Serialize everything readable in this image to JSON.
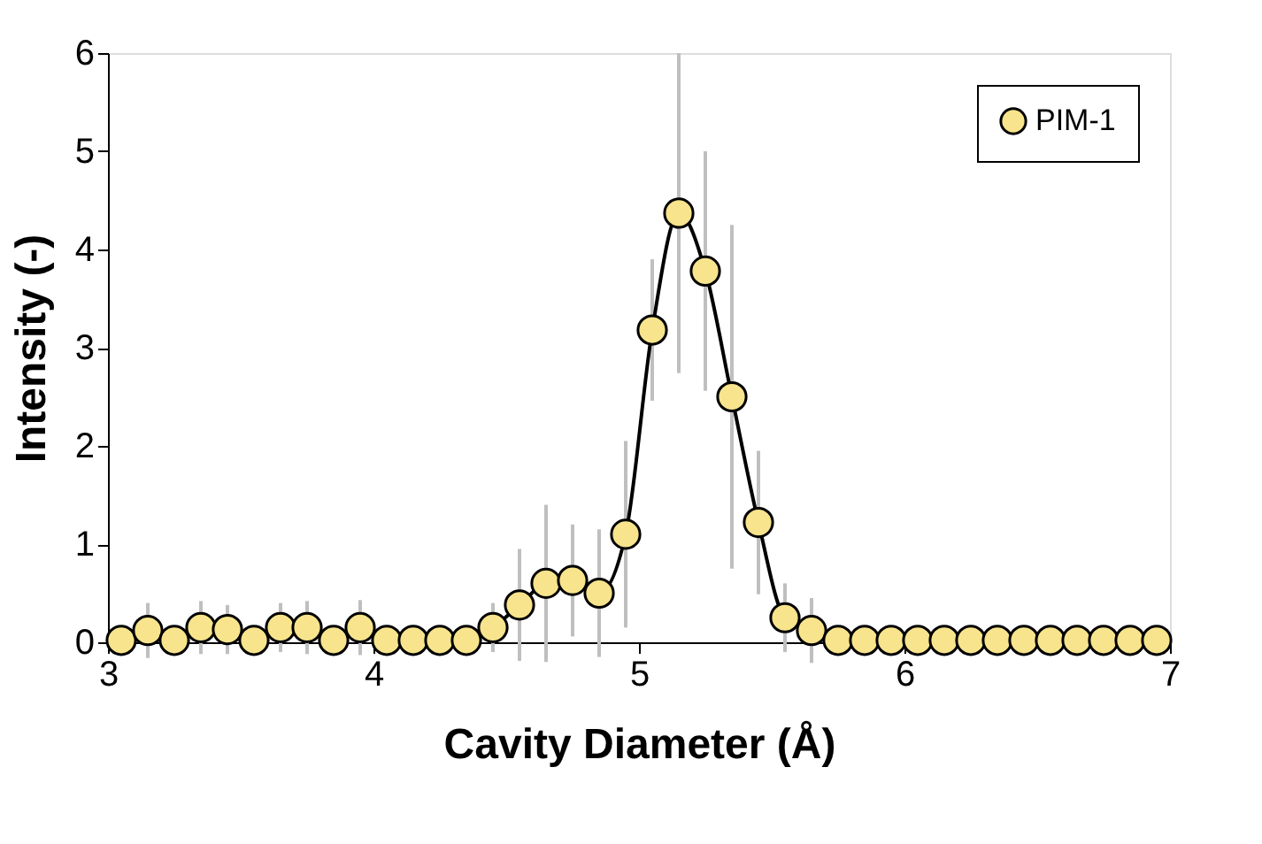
{
  "chart_data": {
    "type": "line",
    "xlabel": "Cavity Diameter (Å)",
    "ylabel": "Intensity (-)",
    "x": [
      3.05,
      3.15,
      3.25,
      3.35,
      3.45,
      3.55,
      3.65,
      3.75,
      3.85,
      3.95,
      4.05,
      4.15,
      4.25,
      4.35,
      4.45,
      4.55,
      4.65,
      4.75,
      4.85,
      4.95,
      5.05,
      5.15,
      5.25,
      5.35,
      5.45,
      5.55,
      5.65,
      5.75,
      5.85,
      5.95,
      6.05,
      6.15,
      6.25,
      6.35,
      6.45,
      6.55,
      6.65,
      6.75,
      6.85,
      6.95
    ],
    "series": [
      {
        "name": "PIM-1",
        "color": "#f7e48c",
        "values": [
          0.02,
          0.12,
          0.02,
          0.15,
          0.13,
          0.02,
          0.15,
          0.15,
          0.02,
          0.15,
          0.02,
          0.02,
          0.02,
          0.02,
          0.15,
          0.38,
          0.6,
          0.63,
          0.5,
          1.1,
          3.18,
          4.37,
          3.78,
          2.5,
          1.22,
          0.25,
          0.12,
          0.02,
          0.02,
          0.02,
          0.02,
          0.02,
          0.02,
          0.02,
          0.02,
          0.02,
          0.02,
          0.02,
          0.02,
          0.02
        ],
        "errors": [
          null,
          0.28,
          null,
          0.27,
          0.25,
          null,
          0.25,
          0.27,
          null,
          0.28,
          null,
          null,
          null,
          null,
          0.25,
          0.57,
          0.8,
          0.57,
          0.65,
          0.95,
          0.72,
          1.63,
          1.22,
          1.75,
          0.73,
          0.35,
          0.33,
          null,
          null,
          null,
          null,
          null,
          null,
          null,
          null,
          null,
          null,
          null,
          null,
          null
        ]
      }
    ],
    "xlim": [
      3,
      7
    ],
    "xticks": [
      3,
      4,
      5,
      6,
      7
    ],
    "ylim": [
      0,
      6
    ],
    "yticks": [
      0,
      1,
      2,
      3,
      4,
      5,
      6
    ],
    "grid": false,
    "legend": "top right",
    "marker": "circle",
    "line_style": "solid"
  }
}
